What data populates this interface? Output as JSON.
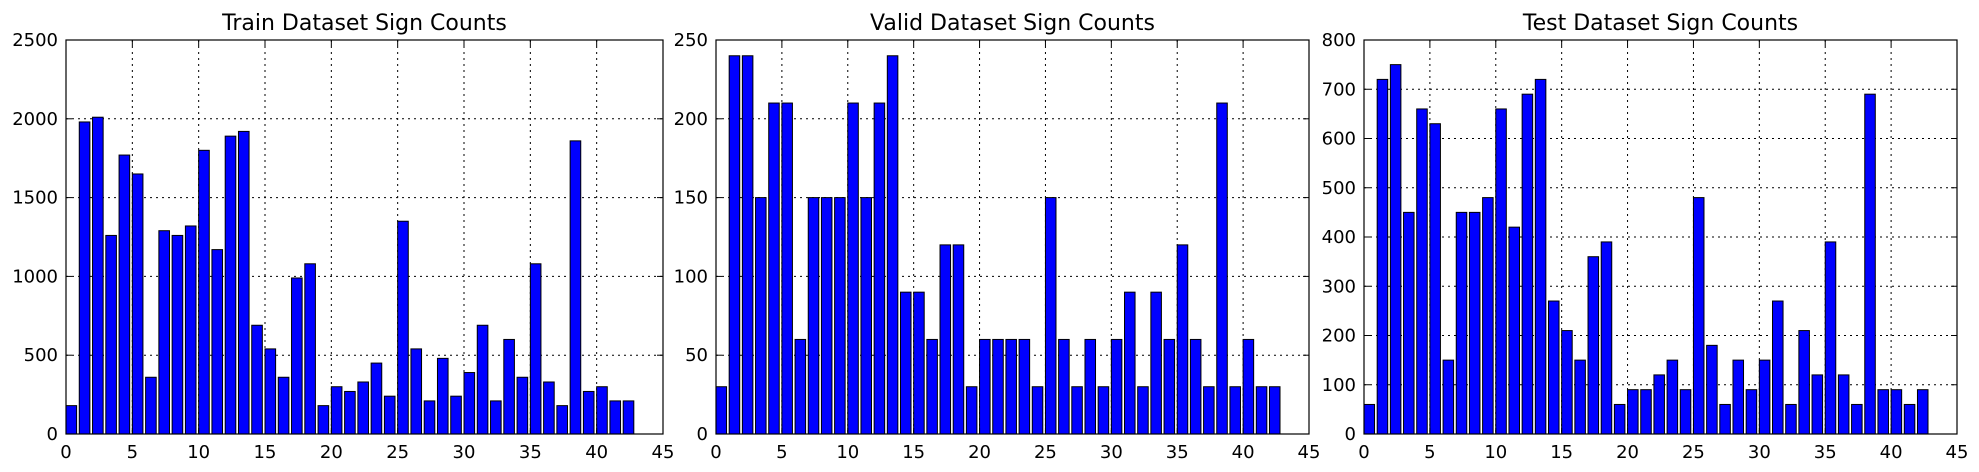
{
  "chart_data": [
    {
      "type": "bar",
      "title": "Train Dataset Sign Counts",
      "xlabel": "",
      "ylabel": "",
      "x": [
        0,
        1,
        2,
        3,
        4,
        5,
        6,
        7,
        8,
        9,
        10,
        11,
        12,
        13,
        14,
        15,
        16,
        17,
        18,
        19,
        20,
        21,
        22,
        23,
        24,
        25,
        26,
        27,
        28,
        29,
        30,
        31,
        32,
        33,
        34,
        35,
        36,
        37,
        38,
        39,
        40,
        41,
        42
      ],
      "values": [
        180,
        1980,
        2010,
        1260,
        1770,
        1650,
        360,
        1290,
        1260,
        1320,
        1800,
        1170,
        1890,
        1920,
        690,
        540,
        360,
        990,
        1080,
        180,
        300,
        270,
        330,
        450,
        240,
        1350,
        540,
        210,
        480,
        240,
        390,
        690,
        210,
        600,
        360,
        1080,
        330,
        180,
        1860,
        270,
        300,
        210,
        210
      ],
      "xlim": [
        0,
        45
      ],
      "ylim": [
        0,
        2500
      ],
      "xticks": [
        0,
        5,
        10,
        15,
        20,
        25,
        30,
        35,
        40,
        45
      ],
      "yticks": [
        0,
        500,
        1000,
        1500,
        2000,
        2500
      ],
      "grid": true,
      "bar_color": "#0000ff"
    },
    {
      "type": "bar",
      "title": "Valid Dataset Sign Counts",
      "xlabel": "",
      "ylabel": "",
      "x": [
        0,
        1,
        2,
        3,
        4,
        5,
        6,
        7,
        8,
        9,
        10,
        11,
        12,
        13,
        14,
        15,
        16,
        17,
        18,
        19,
        20,
        21,
        22,
        23,
        24,
        25,
        26,
        27,
        28,
        29,
        30,
        31,
        32,
        33,
        34,
        35,
        36,
        37,
        38,
        39,
        40,
        41,
        42
      ],
      "values": [
        30,
        240,
        240,
        150,
        210,
        210,
        60,
        150,
        150,
        150,
        210,
        150,
        210,
        240,
        90,
        90,
        60,
        120,
        120,
        30,
        60,
        60,
        60,
        60,
        30,
        150,
        60,
        30,
        60,
        30,
        60,
        90,
        30,
        90,
        60,
        120,
        60,
        30,
        210,
        30,
        60,
        30,
        30
      ],
      "xlim": [
        0,
        45
      ],
      "ylim": [
        0,
        250
      ],
      "xticks": [
        0,
        5,
        10,
        15,
        20,
        25,
        30,
        35,
        40,
        45
      ],
      "yticks": [
        0,
        50,
        100,
        150,
        200,
        250
      ],
      "grid": true,
      "bar_color": "#0000ff"
    },
    {
      "type": "bar",
      "title": "Test Dataset Sign Counts",
      "xlabel": "",
      "ylabel": "",
      "x": [
        0,
        1,
        2,
        3,
        4,
        5,
        6,
        7,
        8,
        9,
        10,
        11,
        12,
        13,
        14,
        15,
        16,
        17,
        18,
        19,
        20,
        21,
        22,
        23,
        24,
        25,
        26,
        27,
        28,
        29,
        30,
        31,
        32,
        33,
        34,
        35,
        36,
        37,
        38,
        39,
        40,
        41,
        42
      ],
      "values": [
        60,
        720,
        750,
        450,
        660,
        630,
        150,
        450,
        450,
        480,
        660,
        420,
        690,
        720,
        270,
        210,
        150,
        360,
        390,
        60,
        90,
        90,
        120,
        150,
        90,
        480,
        180,
        60,
        150,
        90,
        150,
        270,
        60,
        210,
        120,
        390,
        120,
        60,
        690,
        90,
        90,
        60,
        90
      ],
      "xlim": [
        0,
        45
      ],
      "ylim": [
        0,
        800
      ],
      "xticks": [
        0,
        5,
        10,
        15,
        20,
        25,
        30,
        35,
        40,
        45
      ],
      "yticks": [
        0,
        100,
        200,
        300,
        400,
        500,
        600,
        700,
        800
      ],
      "grid": true,
      "bar_color": "#0000ff"
    }
  ]
}
